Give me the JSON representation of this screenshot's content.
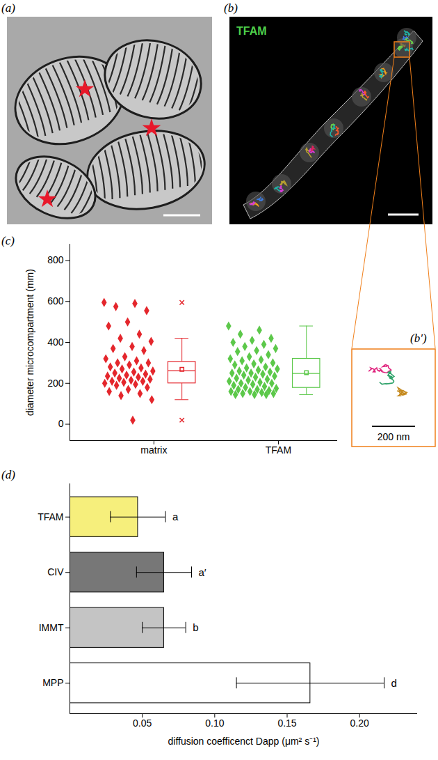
{
  "panels": [
    {
      "label": "(a)"
    },
    {
      "label": "(b)",
      "text": "TFAM",
      "color": "#4fd04a"
    },
    {
      "label": "(b′)",
      "scale_bar": "200 nm"
    }
  ],
  "chart_data": [
    {
      "type": "box",
      "title": "(c)",
      "ylabel": "diameter microcompartment (mm)",
      "categories": [
        "matrix",
        "TFAM"
      ],
      "colors": [
        "#e4262c",
        "#5cc84a"
      ],
      "points": [
        [
          595,
          590,
          575,
          555,
          500,
          480,
          440,
          420,
          405,
          380,
          370,
          360,
          330,
          320,
          310,
          300,
          300,
          290,
          280,
          275,
          270,
          260,
          255,
          250,
          245,
          240,
          235,
          230,
          225,
          220,
          215,
          210,
          210,
          205,
          200,
          195,
          190,
          180,
          170,
          160,
          150,
          140,
          120,
          20
        ],
        [
          480,
          460,
          440,
          420,
          410,
          400,
          390,
          380,
          370,
          360,
          355,
          340,
          330,
          320,
          315,
          310,
          300,
          295,
          290,
          280,
          275,
          270,
          265,
          260,
          255,
          250,
          250,
          245,
          240,
          235,
          230,
          225,
          220,
          215,
          210,
          205,
          200,
          200,
          195,
          190,
          185,
          180,
          175,
          170,
          170,
          165,
          160,
          160,
          155,
          150,
          150,
          145,
          145,
          145
        ]
      ],
      "boxes": [
        {
          "q1": 200,
          "median": 262,
          "q3": 305,
          "mean": 268,
          "whisker_low": 120,
          "whisker_high": 420,
          "outliers": [
            595,
            20
          ]
        },
        {
          "q1": 178,
          "median": 248,
          "q3": 320,
          "mean": 252,
          "whisker_low": 145,
          "whisker_high": 480,
          "outliers": []
        }
      ],
      "ylim": [
        -80,
        880
      ],
      "yticks": [
        0,
        200,
        400,
        600,
        800
      ]
    },
    {
      "type": "bar",
      "orientation": "horizontal",
      "title": "(d)",
      "xlabel": "diffusion coefficenct Dapp (μm² s⁻¹)",
      "categories": [
        "TFAM",
        "CIV",
        "IMMT",
        "MPP"
      ],
      "values": [
        0.047,
        0.065,
        0.065,
        0.166
      ],
      "errors": [
        0.019,
        0.019,
        0.015,
        0.051
      ],
      "annotations": [
        "a",
        "a′",
        "b",
        "d"
      ],
      "colors": [
        "#f6ef7c",
        "#777777",
        "#c4c4c4",
        "#ffffff"
      ],
      "xlim": [
        0,
        0.24
      ],
      "xticks": [
        0.05,
        {
          "value": 0.1,
          "label": "0.10"
        },
        0.15,
        {
          "value": 0.2,
          "label": "0.20"
        }
      ]
    }
  ]
}
